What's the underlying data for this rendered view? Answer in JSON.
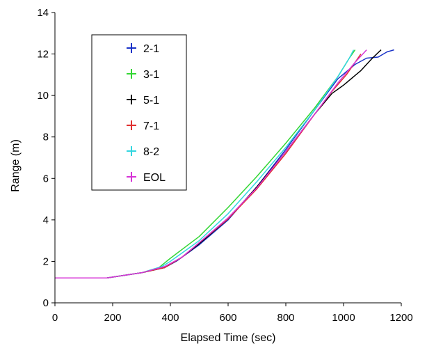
{
  "chart_data": {
    "type": "line",
    "xlabel": "Elapsed Time (sec)",
    "ylabel": "Range (m)",
    "xlim": [
      0,
      1200
    ],
    "ylim": [
      0,
      14
    ],
    "xticks": [
      "0",
      "200",
      "400",
      "600",
      "800",
      "1000",
      "1200"
    ],
    "yticks": [
      "0",
      "2",
      "4",
      "6",
      "8",
      "10",
      "12",
      "14"
    ],
    "grid": false,
    "legend_position": "top-left",
    "series": [
      {
        "name": "2-1",
        "color": "#1a33c8",
        "points": [
          [
            0,
            1.2
          ],
          [
            180,
            1.2
          ],
          [
            300,
            1.45
          ],
          [
            380,
            1.7
          ],
          [
            420,
            2.0
          ],
          [
            500,
            2.8
          ],
          [
            600,
            4.0
          ],
          [
            700,
            5.6
          ],
          [
            800,
            7.4
          ],
          [
            900,
            9.3
          ],
          [
            980,
            10.8
          ],
          [
            1040,
            11.5
          ],
          [
            1080,
            11.8
          ],
          [
            1120,
            11.85
          ],
          [
            1150,
            12.1
          ],
          [
            1175,
            12.2
          ]
        ]
      },
      {
        "name": "3-1",
        "color": "#33d633",
        "points": [
          [
            0,
            1.2
          ],
          [
            180,
            1.2
          ],
          [
            300,
            1.45
          ],
          [
            360,
            1.7
          ],
          [
            400,
            2.15
          ],
          [
            500,
            3.2
          ],
          [
            600,
            4.6
          ],
          [
            700,
            6.1
          ],
          [
            800,
            7.7
          ],
          [
            900,
            9.4
          ],
          [
            980,
            10.9
          ],
          [
            1020,
            11.8
          ],
          [
            1040,
            12.2
          ]
        ]
      },
      {
        "name": "5-1",
        "color": "#000000",
        "points": [
          [
            0,
            1.2
          ],
          [
            180,
            1.2
          ],
          [
            300,
            1.45
          ],
          [
            380,
            1.7
          ],
          [
            440,
            2.2
          ],
          [
            500,
            2.85
          ],
          [
            600,
            4.05
          ],
          [
            700,
            5.6
          ],
          [
            800,
            7.3
          ],
          [
            900,
            9.1
          ],
          [
            960,
            10.1
          ],
          [
            1000,
            10.5
          ],
          [
            1060,
            11.2
          ],
          [
            1100,
            11.8
          ],
          [
            1130,
            12.2
          ]
        ]
      },
      {
        "name": "7-1",
        "color": "#e03030",
        "points": [
          [
            0,
            1.2
          ],
          [
            180,
            1.2
          ],
          [
            300,
            1.45
          ],
          [
            380,
            1.7
          ],
          [
            440,
            2.2
          ],
          [
            500,
            2.9
          ],
          [
            600,
            4.05
          ],
          [
            700,
            5.5
          ],
          [
            800,
            7.2
          ],
          [
            900,
            9.1
          ],
          [
            960,
            10.2
          ],
          [
            1010,
            11.0
          ],
          [
            1040,
            11.6
          ],
          [
            1060,
            12.0
          ]
        ]
      },
      {
        "name": "8-2",
        "color": "#33d6e0",
        "points": [
          [
            0,
            1.2
          ],
          [
            180,
            1.2
          ],
          [
            300,
            1.45
          ],
          [
            370,
            1.75
          ],
          [
            400,
            2.0
          ],
          [
            500,
            3.0
          ],
          [
            600,
            4.3
          ],
          [
            700,
            5.85
          ],
          [
            800,
            7.5
          ],
          [
            900,
            9.3
          ],
          [
            980,
            10.9
          ],
          [
            1020,
            11.8
          ],
          [
            1035,
            12.2
          ]
        ]
      },
      {
        "name": "EOL",
        "color": "#d633d6",
        "points": [
          [
            0,
            1.2
          ],
          [
            180,
            1.2
          ],
          [
            300,
            1.45
          ],
          [
            380,
            1.75
          ],
          [
            440,
            2.2
          ],
          [
            500,
            2.9
          ],
          [
            600,
            4.1
          ],
          [
            700,
            5.55
          ],
          [
            800,
            7.3
          ],
          [
            900,
            9.1
          ],
          [
            980,
            10.6
          ],
          [
            1040,
            11.6
          ],
          [
            1080,
            12.2
          ]
        ]
      }
    ]
  }
}
